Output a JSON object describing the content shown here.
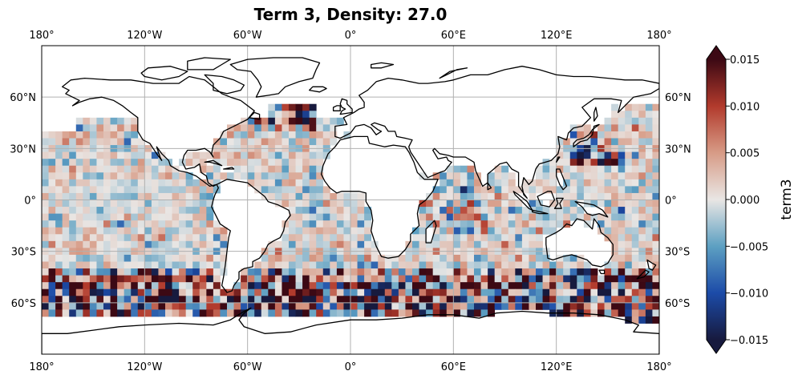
{
  "map": {
    "title": "Term 3, Density: 27.0",
    "projection": "PlateCarree",
    "extent": {
      "lon": [
        -180,
        180
      ],
      "lat": [
        -90,
        90
      ]
    },
    "gridlines": true,
    "lon_ticks": [
      {
        "value": -180,
        "label": "180°"
      },
      {
        "value": -120,
        "label": "120°W"
      },
      {
        "value": -60,
        "label": "60°W"
      },
      {
        "value": 0,
        "label": "0°"
      },
      {
        "value": 60,
        "label": "60°E"
      },
      {
        "value": 120,
        "label": "120°E"
      },
      {
        "value": 180,
        "label": "180°"
      }
    ],
    "lat_ticks": [
      {
        "value": 60,
        "label": "60°N"
      },
      {
        "value": 30,
        "label": "30°N"
      },
      {
        "value": 0,
        "label": "0°"
      },
      {
        "value": -30,
        "label": "30°S"
      },
      {
        "value": -60,
        "label": "60°S"
      }
    ],
    "field": {
      "variable": "term3",
      "grid_resolution_deg": 4,
      "pattern": "noisy positive/negative anomalies over ocean, strongest in Southern Ocean band 40–60°S and North Atlantic 40–55°N"
    }
  },
  "colorbar": {
    "label": "term3",
    "vmin": -0.015,
    "vmax": 0.015,
    "extend": "both",
    "colormap": "balance",
    "colors": [
      "#171a3e",
      "#1c4ba8",
      "#5da0c2",
      "#e9e6e4",
      "#d79b86",
      "#b23a2c",
      "#3c0914"
    ],
    "ticks": [
      {
        "value": 0.015,
        "label": "0.015"
      },
      {
        "value": 0.01,
        "label": "0.010"
      },
      {
        "value": 0.005,
        "label": "0.005"
      },
      {
        "value": 0.0,
        "label": "0.000"
      },
      {
        "value": -0.005,
        "label": "−0.005"
      },
      {
        "value": -0.01,
        "label": "−0.010"
      },
      {
        "value": -0.015,
        "label": "−0.015"
      }
    ]
  }
}
